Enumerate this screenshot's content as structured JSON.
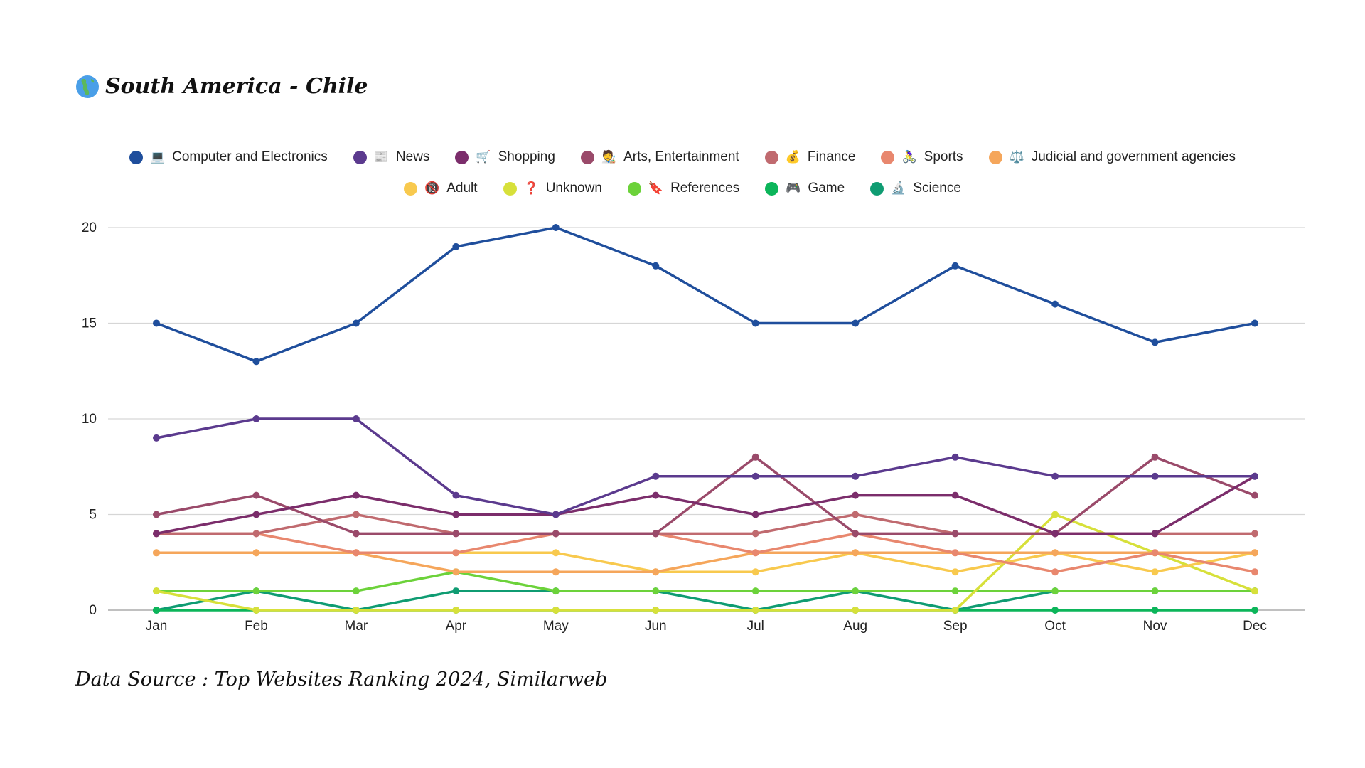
{
  "header": {
    "title": "South America - Chile",
    "icon": "globe-americas-icon"
  },
  "footer": {
    "source": "Data Source : Top Websites Ranking 2024, Similarweb"
  },
  "chart_data": {
    "type": "line",
    "title": "South America - Chile",
    "xlabel": "",
    "ylabel": "",
    "categories": [
      "Jan",
      "Feb",
      "Mar",
      "Apr",
      "May",
      "Jun",
      "Jul",
      "Aug",
      "Sep",
      "Oct",
      "Nov",
      "Dec"
    ],
    "ylim": [
      0,
      20
    ],
    "yticks": [
      0,
      5,
      10,
      15,
      20
    ],
    "grid": true,
    "legend_placement": "top-center",
    "series": [
      {
        "name": "Computer and Electronics",
        "icon": "💻",
        "color": "#1f4e9c",
        "values": [
          15,
          13,
          15,
          19,
          20,
          18,
          15,
          15,
          18,
          16,
          14,
          15
        ]
      },
      {
        "name": "News",
        "icon": "📰",
        "color": "#5b3a8e",
        "values": [
          9,
          10,
          10,
          6,
          5,
          7,
          7,
          7,
          8,
          7,
          7,
          7
        ]
      },
      {
        "name": "Shopping",
        "icon": "🛒",
        "color": "#7b2d6b",
        "values": [
          4,
          5,
          6,
          5,
          5,
          6,
          5,
          6,
          6,
          4,
          4,
          7
        ]
      },
      {
        "name": "Arts, Entertainment",
        "icon": "🧑‍🎨",
        "color": "#9a4a6a",
        "values": [
          5,
          6,
          4,
          4,
          4,
          4,
          8,
          4,
          4,
          4,
          8,
          6
        ]
      },
      {
        "name": "Finance",
        "icon": "💰",
        "color": "#c06a6f",
        "values": [
          4,
          4,
          5,
          4,
          4,
          4,
          4,
          5,
          4,
          4,
          4,
          4
        ]
      },
      {
        "name": "Sports",
        "icon": "🚴‍♀️",
        "color": "#e8876e",
        "values": [
          4,
          4,
          3,
          3,
          4,
          4,
          3,
          4,
          3,
          2,
          3,
          2
        ]
      },
      {
        "name": "Judicial and government agencies",
        "icon": "⚖️",
        "color": "#f5a65b",
        "values": [
          3,
          3,
          3,
          2,
          2,
          2,
          3,
          3,
          3,
          3,
          3,
          3
        ]
      },
      {
        "name": "Adult",
        "icon": "🔞",
        "color": "#f8c94e",
        "values": [
          3,
          3,
          3,
          3,
          3,
          2,
          2,
          3,
          2,
          3,
          2,
          3
        ]
      },
      {
        "name": "Unknown",
        "icon": "❓",
        "color": "#d7e03a",
        "values": [
          1,
          0,
          0,
          0,
          0,
          0,
          0,
          0,
          0,
          5,
          3,
          1
        ]
      },
      {
        "name": "References",
        "icon": "🔖",
        "color": "#6cd23a",
        "values": [
          1,
          1,
          1,
          2,
          1,
          1,
          1,
          1,
          1,
          1,
          1,
          1
        ]
      },
      {
        "name": "Game",
        "icon": "🎮",
        "color": "#0cb55a",
        "values": [
          0,
          0,
          0,
          0,
          0,
          0,
          0,
          0,
          0,
          0,
          0,
          0
        ]
      },
      {
        "name": "Science",
        "icon": "🔬",
        "color": "#0f9c72",
        "values": [
          0,
          1,
          0,
          1,
          1,
          1,
          0,
          1,
          0,
          1,
          1,
          1
        ]
      }
    ]
  }
}
